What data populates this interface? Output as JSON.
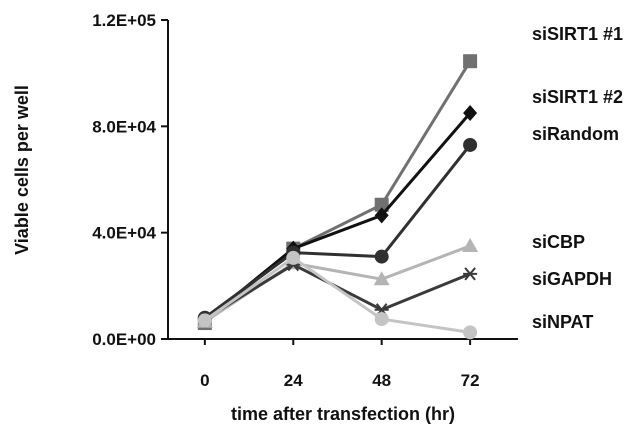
{
  "chart_data": {
    "type": "line",
    "title": "",
    "xlabel": "time after transfection (hr)",
    "ylabel": "Viable cells per well",
    "x": [
      0,
      24,
      48,
      72
    ],
    "x_tick_labels": [
      "0",
      "24",
      "48",
      "72"
    ],
    "xlim": [
      -10,
      85
    ],
    "ylim": [
      0,
      120000
    ],
    "y_ticks": [
      0,
      40000,
      80000,
      120000
    ],
    "y_tick_labels": [
      "0.0E+00",
      "4.0E+04",
      "8.0E+04",
      "1.2E+05"
    ],
    "grid": false,
    "legend": "right, labels beside line ends",
    "series": [
      {
        "name": "siSIRT1 #1",
        "values": [
          6000,
          34000,
          50500,
          104500
        ],
        "color": "#707070",
        "marker": "square"
      },
      {
        "name": "siSIRT1 #2",
        "values": [
          7000,
          34000,
          46500,
          85000
        ],
        "color": "#111111",
        "marker": "diamond"
      },
      {
        "name": "siRandom",
        "values": [
          8000,
          32500,
          31000,
          73000
        ],
        "color": "#303030",
        "marker": "circle"
      },
      {
        "name": "siCBP",
        "values": [
          6500,
          28500,
          22500,
          35000
        ],
        "color": "#b4b4b4",
        "marker": "triangle"
      },
      {
        "name": "siGAPDH",
        "values": [
          7500,
          28000,
          11000,
          24500
        ],
        "color": "#3a3a3a",
        "marker": "asterisk"
      },
      {
        "name": "siNPAT",
        "values": [
          7000,
          30500,
          7500,
          2500
        ],
        "color": "#c4c4c4",
        "marker": "circle"
      }
    ],
    "legend_entries": [
      "siSIRT1 #1",
      "siSIRT1 #2",
      "siRandom",
      "siCBP",
      "siGAPDH",
      "siNPAT"
    ]
  }
}
